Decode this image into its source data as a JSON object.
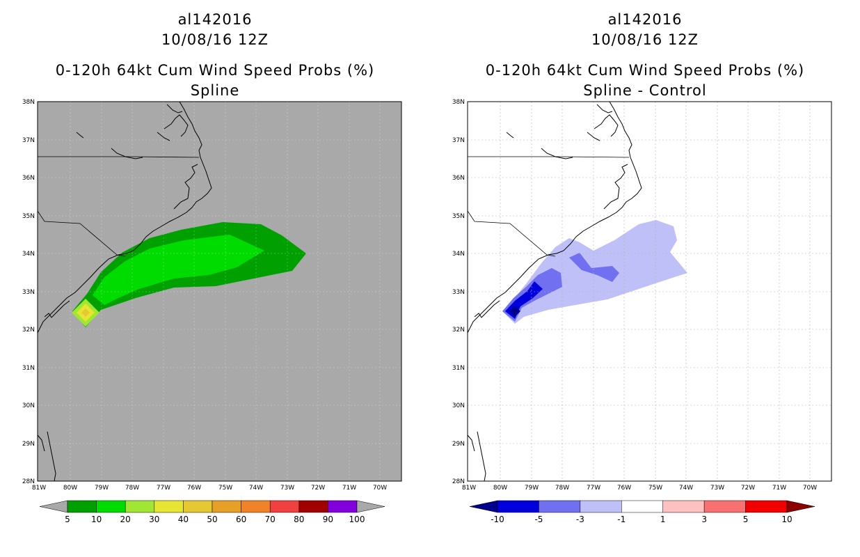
{
  "panels": [
    {
      "storm_id": "al142016",
      "datetime": "10/08/16 12Z",
      "product": "0-120h 64kt Cum Wind Speed Probs (%)",
      "subtitle": "Spline",
      "background_color": "#a9a9a9",
      "colorbar": {
        "labels": [
          "5",
          "10",
          "20",
          "30",
          "40",
          "50",
          "60",
          "70",
          "80",
          "90",
          "100"
        ],
        "colors": [
          "#00a000",
          "#00dc00",
          "#a0e632",
          "#e6e632",
          "#e6c832",
          "#e6a028",
          "#f08228",
          "#f04040",
          "#a00000",
          "#8200dc"
        ],
        "under_color": "#a9a9a9",
        "over_color": "#a9a9a9"
      }
    },
    {
      "storm_id": "al142016",
      "datetime": "10/08/16 12Z",
      "product": "0-120h 64kt Cum Wind Speed Probs (%)",
      "subtitle": "Spline - Control",
      "background_color": "#ffffff",
      "colorbar": {
        "labels": [
          "-10",
          "-5",
          "-3",
          "-1",
          "1",
          "3",
          "5",
          "10"
        ],
        "colors": [
          "#0000dc",
          "#7070f0",
          "#c0c0f8",
          "#ffffff",
          "#ffc0c0",
          "#f87070",
          "#f00000"
        ],
        "under_color": "#00008c",
        "over_color": "#8c0000"
      }
    }
  ],
  "map": {
    "lat_labels": [
      "38N",
      "37N",
      "36N",
      "35N",
      "34N",
      "33N",
      "32N",
      "31N",
      "30N",
      "29N",
      "28N"
    ],
    "lon_labels": [
      "81W",
      "80W",
      "79W",
      "78W",
      "77W",
      "76W",
      "75W",
      "74W",
      "73W",
      "72W",
      "71W",
      "70W"
    ]
  }
}
